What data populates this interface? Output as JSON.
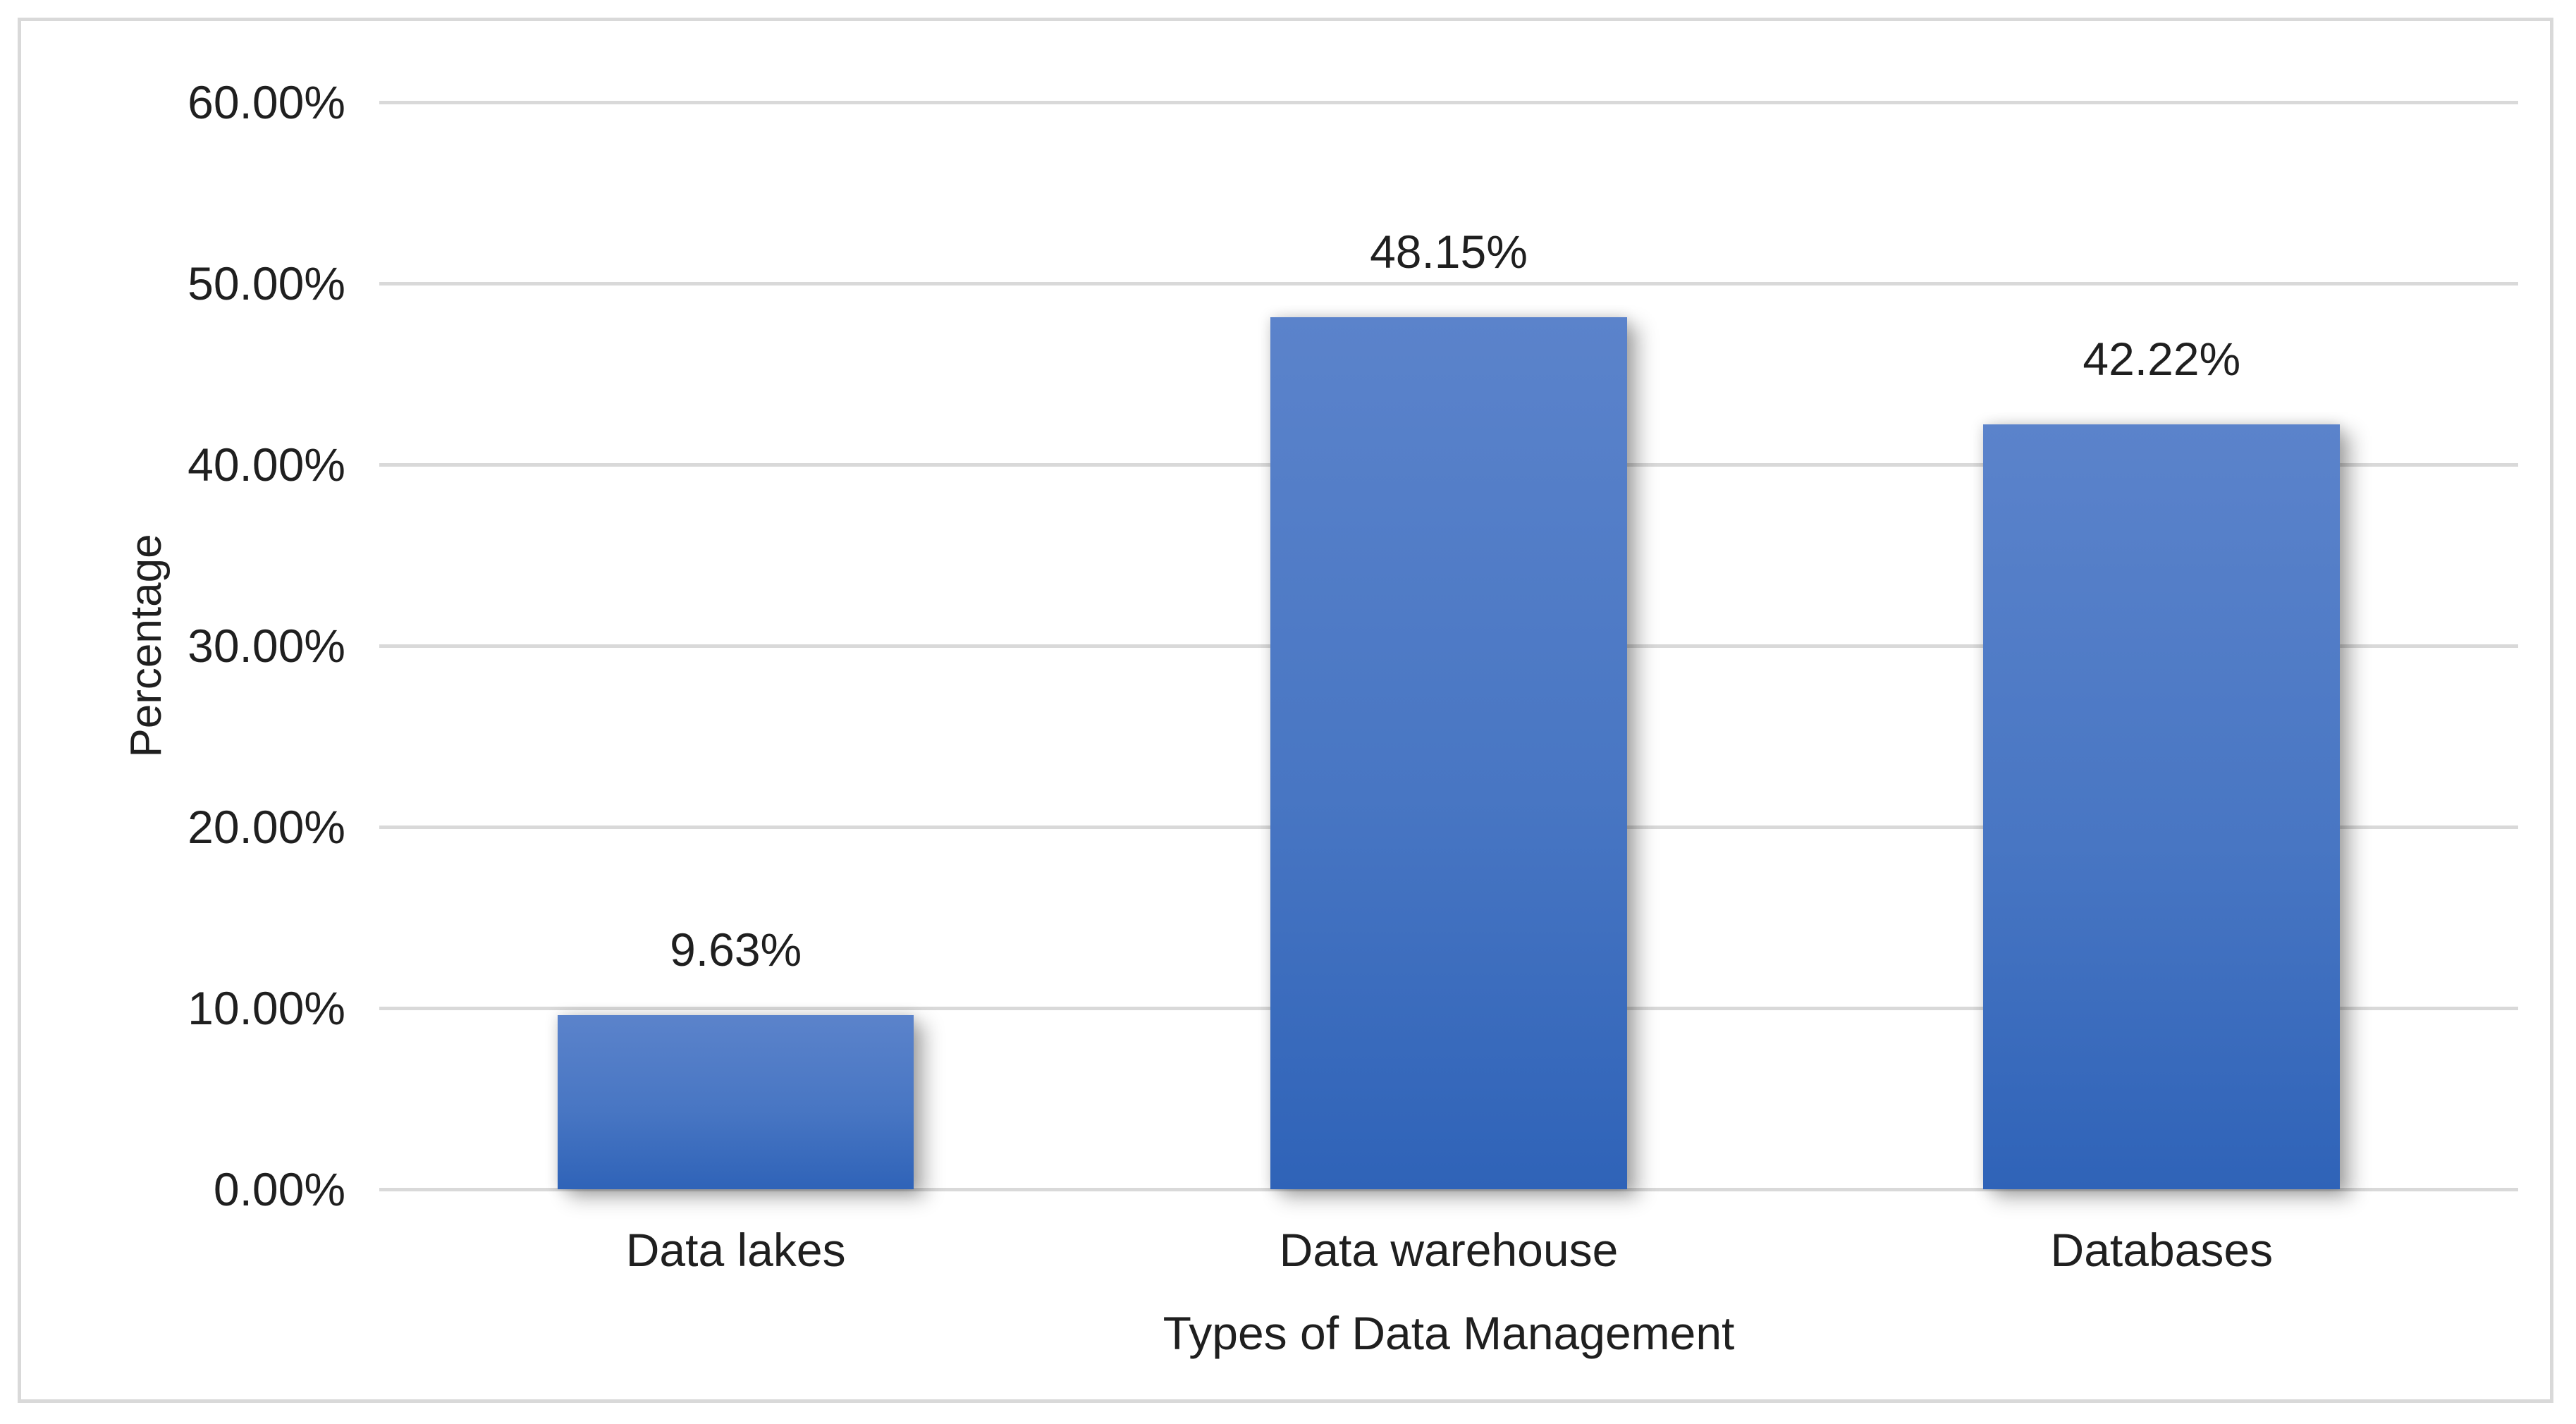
{
  "chart_data": {
    "type": "bar",
    "title": "",
    "categories": [
      "Data lakes",
      "Data warehouse",
      "Databases"
    ],
    "values": [
      9.63,
      48.15,
      42.22
    ],
    "value_labels": [
      "9.63%",
      "48.15%",
      "42.22%"
    ],
    "xlabel": "Types of Data Management",
    "ylabel": "Percentage",
    "ylim": [
      0,
      60
    ],
    "ytick_step": 10,
    "ytick_labels": [
      "0.00%",
      "10.00%",
      "20.00%",
      "30.00%",
      "40.00%",
      "50.00%",
      "60.00%"
    ],
    "grid": "horizontal",
    "legend_position": "none",
    "colors": {
      "bar_gradient_top": "#5B83CB",
      "bar_gradient_mid": "#4876C3",
      "bar_gradient_bottom": "#2F63B8",
      "gridline": "#D9D9D9",
      "frame_border": "#D9D9D9",
      "text": "#1F1F1F",
      "background": "#FFFFFF"
    }
  }
}
